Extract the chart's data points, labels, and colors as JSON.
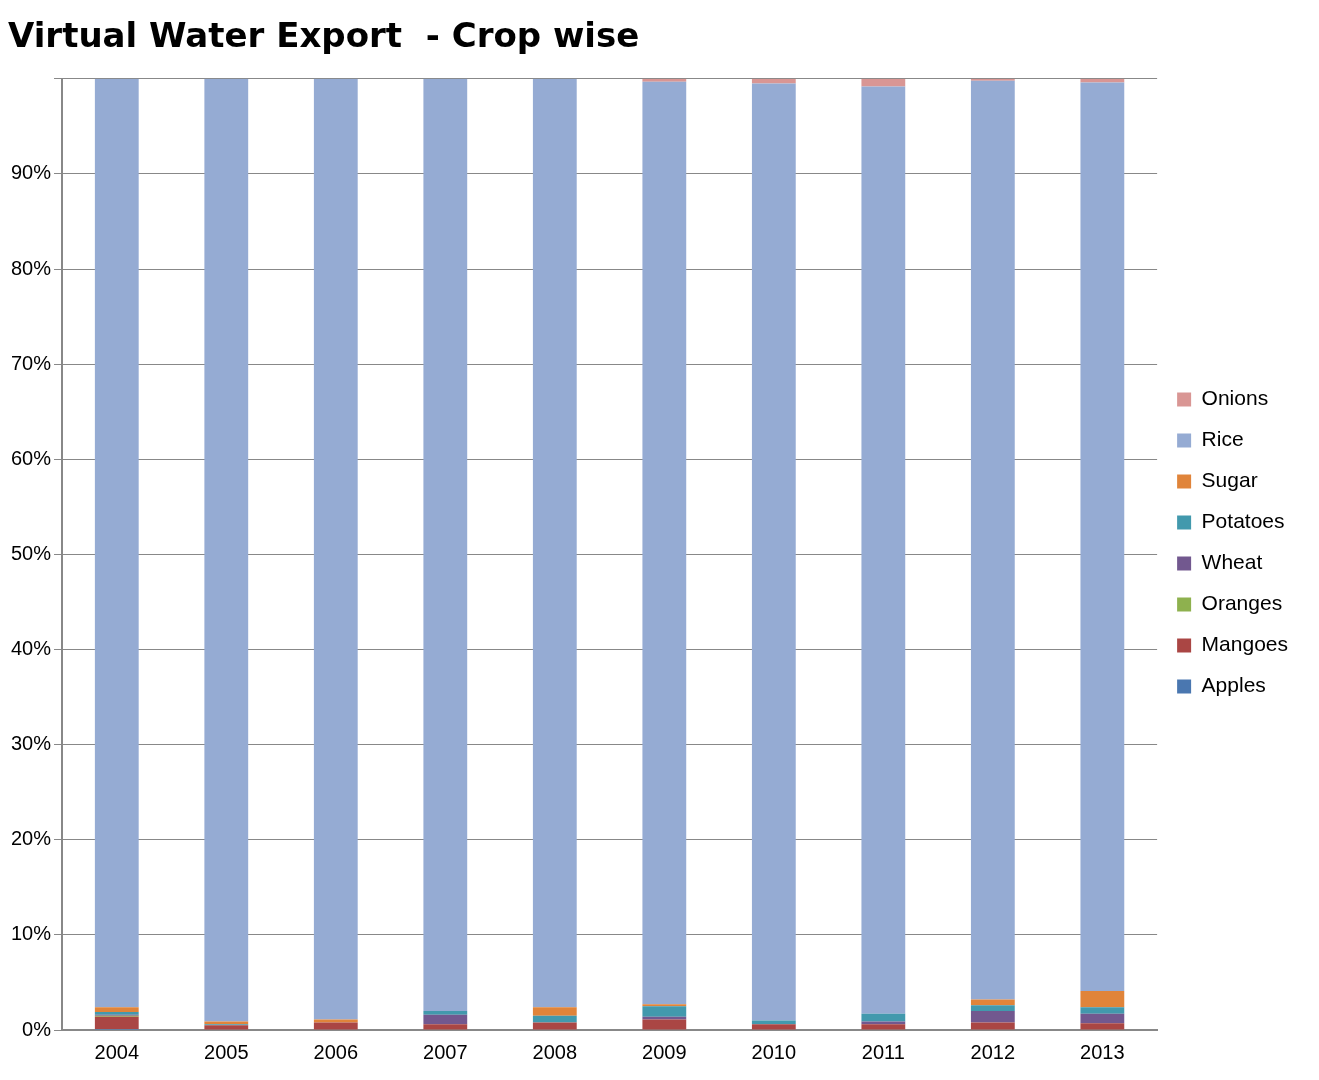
{
  "chart_data": {
    "type": "bar",
    "title": "Virtual Water Export  - Crop wise",
    "stacked": true,
    "categories": [
      "2004",
      "2005",
      "2006",
      "2007",
      "2008",
      "2009",
      "2010",
      "2011",
      "2012",
      "2013"
    ],
    "series": [
      {
        "name": "Apples",
        "color": "#4a77b0",
        "values": [
          0.1,
          0,
          0,
          0,
          0,
          0,
          0,
          0,
          0,
          0
        ]
      },
      {
        "name": "Mangoes",
        "color": "#aa4644",
        "values": [
          1.3,
          0.5,
          0.8,
          0.6,
          0.8,
          1.1,
          0.6,
          0.6,
          0.8,
          0.7
        ]
      },
      {
        "name": "Oranges",
        "color": "#8eb14e",
        "values": [
          0.1,
          0,
          0,
          0,
          0,
          0,
          0,
          0,
          0,
          0
        ]
      },
      {
        "name": "Wheat",
        "color": "#72588f",
        "values": [
          0.1,
          0,
          0,
          1.0,
          0,
          0.3,
          0,
          0.3,
          1.2,
          1.0
        ]
      },
      {
        "name": "Potatoes",
        "color": "#4299ad",
        "values": [
          0.3,
          0.1,
          0,
          0.4,
          0.7,
          1.1,
          0.4,
          0.8,
          0.6,
          0.7
        ]
      },
      {
        "name": "Sugar",
        "color": "#e0843a",
        "values": [
          0.5,
          0.3,
          0.3,
          0,
          0.9,
          0.2,
          0,
          0,
          0.6,
          1.7
        ]
      },
      {
        "name": "Rice",
        "color": "#95abd3",
        "values": [
          97.6,
          99.1,
          98.9,
          98.0,
          97.6,
          97.0,
          98.5,
          97.5,
          96.6,
          95.5
        ]
      },
      {
        "name": "Onions",
        "color": "#d99694",
        "values": [
          null,
          null,
          null,
          null,
          null,
          0.3,
          0.5,
          0.8,
          0.2,
          0.4
        ]
      }
    ],
    "ylim": [
      0,
      100
    ],
    "yticks": [
      {
        "value": 0,
        "label": "0%"
      },
      {
        "value": 10,
        "label": "10%"
      },
      {
        "value": 20,
        "label": "20%"
      },
      {
        "value": 30,
        "label": "30%"
      },
      {
        "value": 40,
        "label": "40%"
      },
      {
        "value": 50,
        "label": "50%"
      },
      {
        "value": 60,
        "label": "60%"
      },
      {
        "value": 70,
        "label": "70%"
      },
      {
        "value": 80,
        "label": "80%"
      },
      {
        "value": 90,
        "label": "90%"
      },
      {
        "value": 100,
        "label": null
      }
    ],
    "grid": "y",
    "legend": "right"
  }
}
